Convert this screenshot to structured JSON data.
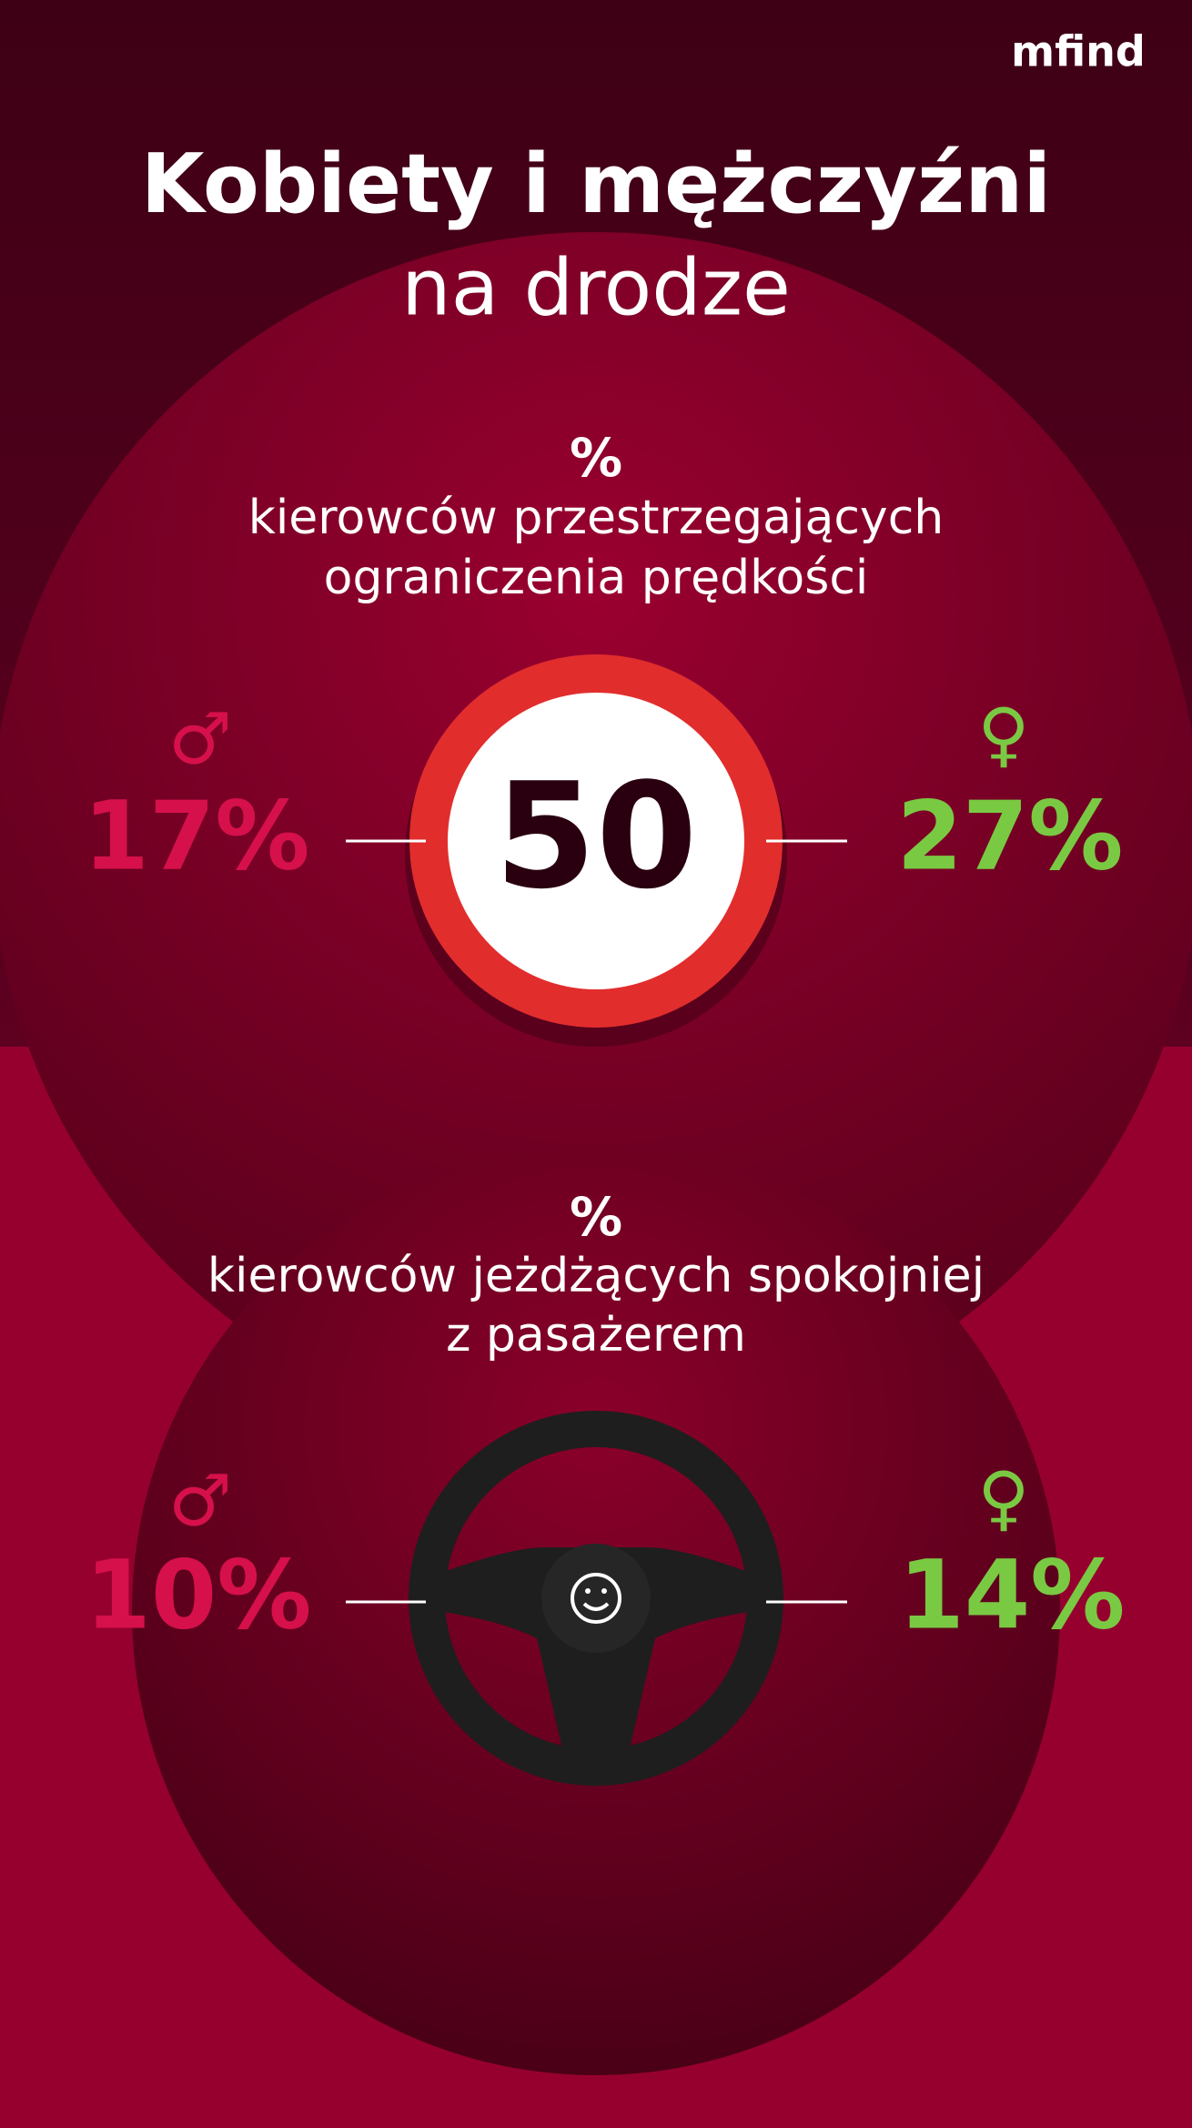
{
  "brand": "mfind",
  "title": {
    "line1": "Kobiety i mężczyźni",
    "line2": "na drodze"
  },
  "sections": [
    {
      "unit": "%",
      "caption": [
        "kierowców przestrzegających",
        "ograniczenia prędkości"
      ],
      "sign": "50",
      "male": {
        "symbol": "♂",
        "value": "17%"
      },
      "female": {
        "symbol": "♀",
        "value": "27%"
      }
    },
    {
      "unit": "%",
      "caption": [
        "kierowców jeżdżących spokojniej",
        "z pasażerem"
      ],
      "male": {
        "symbol": "♂",
        "value": "10%"
      },
      "female": {
        "symbol": "♀",
        "value": "14%"
      }
    }
  ]
}
